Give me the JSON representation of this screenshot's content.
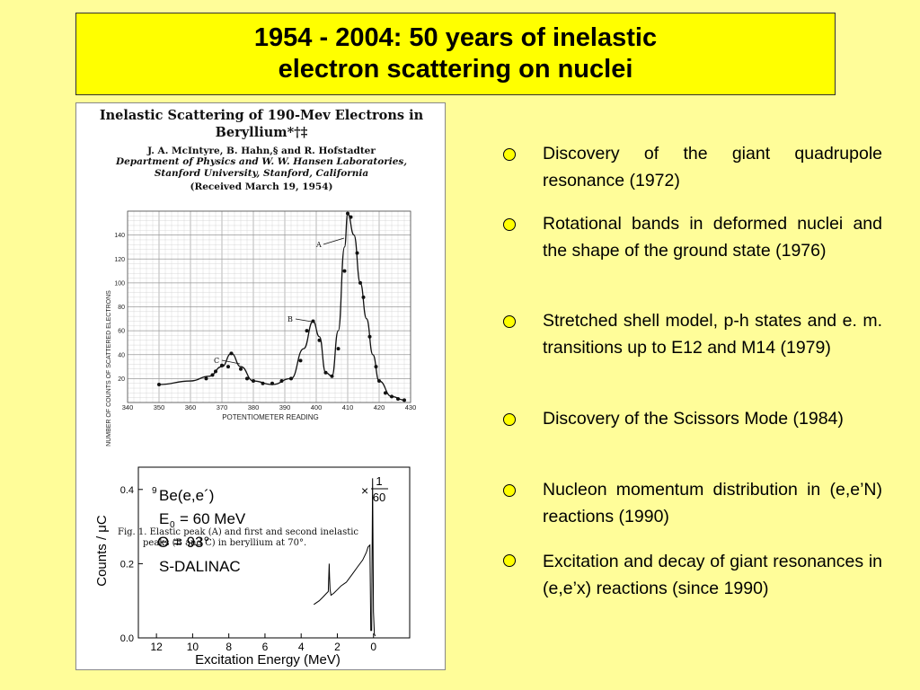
{
  "slide": {
    "title_line1": "1954 - 2004:  50 years of inelastic",
    "title_line2": "electron scattering on nuclei"
  },
  "paper": {
    "title_line1": "Inelastic Scattering of 190-Mev Electrons in",
    "title_line2": "Beryllium*†‡",
    "authors": "J. A. McIntyre, B. Hahn,§ and R. Hofstadter",
    "institution_line1": "Department of Physics and W. W. Hansen Laboratories,",
    "institution_line2": "Stanford University, Stanford, California",
    "received": "(Received March 19, 1954)",
    "caption_line1": "Fig. 1. Elastic peak (A) and first and second inelastic",
    "caption_line2": "peaks (B and C) in beryllium at 70°."
  },
  "chart_data": [
    {
      "type": "scatter",
      "ylabel": "NUMBER OF COUNTS OF SCATTERED ELECTRONS",
      "xlabel": "POTENTIOMETER  READING",
      "xlim": [
        340,
        430
      ],
      "ylim": [
        0,
        160
      ],
      "xticks": [
        "340",
        "350",
        "360",
        "370",
        "380",
        "390",
        "400",
        "410",
        "420",
        "430"
      ],
      "yticks": [
        "20",
        "40",
        "60",
        "80",
        "100",
        "120",
        "140"
      ],
      "peak_labels": [
        "A",
        "B",
        "C"
      ],
      "points": [
        [
          350,
          15
        ],
        [
          365,
          20
        ],
        [
          367,
          23
        ],
        [
          368,
          26
        ],
        [
          370,
          31
        ],
        [
          372,
          30
        ],
        [
          373,
          41
        ],
        [
          376,
          28
        ],
        [
          378,
          20
        ],
        [
          380,
          18
        ],
        [
          383,
          16
        ],
        [
          386,
          16
        ],
        [
          389,
          18
        ],
        [
          392,
          20
        ],
        [
          395,
          35
        ],
        [
          397,
          60
        ],
        [
          399,
          68
        ],
        [
          401,
          52
        ],
        [
          403,
          25
        ],
        [
          405,
          22
        ],
        [
          407,
          45
        ],
        [
          409,
          110
        ],
        [
          410,
          158
        ],
        [
          411,
          155
        ],
        [
          413,
          125
        ],
        [
          414,
          100
        ],
        [
          415,
          88
        ],
        [
          417,
          55
        ],
        [
          419,
          30
        ],
        [
          420,
          18
        ],
        [
          422,
          8
        ],
        [
          424,
          5
        ],
        [
          426,
          3
        ],
        [
          428,
          2
        ]
      ],
      "curve": [
        [
          350,
          15
        ],
        [
          360,
          18
        ],
        [
          366,
          22
        ],
        [
          370,
          30
        ],
        [
          373,
          41
        ],
        [
          376,
          30
        ],
        [
          380,
          18
        ],
        [
          386,
          15
        ],
        [
          392,
          20
        ],
        [
          396,
          45
        ],
        [
          399,
          68
        ],
        [
          401,
          55
        ],
        [
          403,
          25
        ],
        [
          405,
          22
        ],
        [
          407,
          60
        ],
        [
          409,
          130
        ],
        [
          410,
          158
        ],
        [
          412,
          140
        ],
        [
          414,
          100
        ],
        [
          416,
          70
        ],
        [
          418,
          40
        ],
        [
          420,
          18
        ],
        [
          424,
          5
        ],
        [
          428,
          2
        ]
      ]
    },
    {
      "type": "line",
      "ylabel": "Counts / μC",
      "xlabel": "Excitation Energy (MeV)",
      "xlim": [
        13,
        -2
      ],
      "ylim": [
        0,
        0.46
      ],
      "xticks": [
        "12",
        "10",
        "8",
        "6",
        "4",
        "2",
        "0"
      ],
      "yticks": [
        "0.0",
        "0.2",
        "0.4"
      ],
      "annotation_lines": [
        "Be(e,e´)",
        "E",
        "= 60 MeV",
        "Θ = 93°",
        "S-DALINAC"
      ],
      "nucleus_superscript": "9",
      "energy_subscript": "0",
      "scale_note": [
        "×",
        "1",
        "60"
      ],
      "x": [
        3.3,
        3.0,
        2.8,
        2.6,
        2.5,
        2.45,
        2.43,
        2.4,
        2.35,
        2.2,
        2.0,
        1.8,
        1.5,
        1.2,
        0.9,
        0.6,
        0.4,
        0.3,
        0.2,
        0.15,
        0.1,
        0.08,
        0.05,
        0.0,
        -0.05,
        -0.1
      ],
      "y": [
        0.09,
        0.1,
        0.11,
        0.12,
        0.125,
        0.2,
        0.165,
        0.13,
        0.115,
        0.12,
        0.13,
        0.14,
        0.15,
        0.17,
        0.19,
        0.21,
        0.23,
        0.245,
        0.25,
        0.02,
        0.02,
        0.2,
        0.43,
        0.07,
        0.01,
        0.005
      ]
    }
  ],
  "bullets": [
    {
      "text": "Discovery of the giant quadrupole resonance (1972)"
    },
    {
      "text": "Rotational bands in deformed nuclei and the shape of the ground state (1976)"
    },
    {
      "text": "Stretched shell model,  p-h states and e. m. transitions up to E12 and M14 (1979)"
    },
    {
      "text": "Discovery of the Scissors Mode (1984)"
    },
    {
      "text": "Nucleon  momentum distribution in  (e,e’N)  reactions  (1990)"
    },
    {
      "text": "Excitation and decay of giant resonances in (e,e’x)  reactions (since 1990)"
    }
  ]
}
